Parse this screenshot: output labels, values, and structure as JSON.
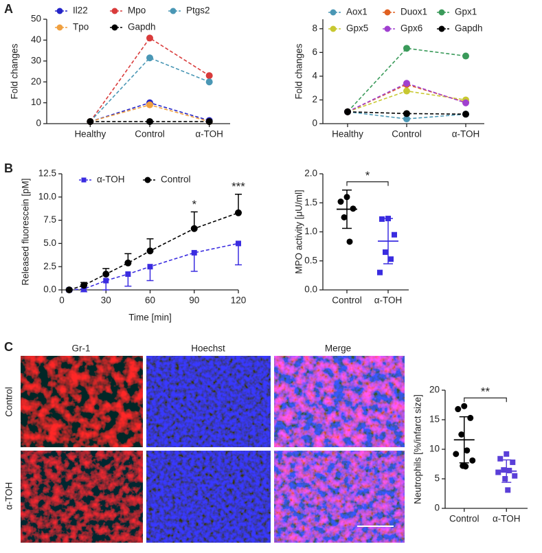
{
  "panels": [
    "A",
    "B",
    "C"
  ],
  "micrographs": {
    "columns": [
      "Gr-1",
      "Hoechst",
      "Merge"
    ],
    "rows": [
      "Control",
      "α-TOH"
    ]
  },
  "chart_data": [
    {
      "type": "line",
      "ylabel": "Fold changes",
      "categories": [
        "Healthy",
        "Control",
        "α-TOH"
      ],
      "ylim": [
        0,
        50
      ],
      "yticks": [
        0,
        10,
        20,
        30,
        40,
        50
      ],
      "line_style": "dashed",
      "series": [
        {
          "name": "Il22",
          "color": "#2424c8",
          "marker": "circle",
          "values": [
            1,
            10,
            1.5
          ]
        },
        {
          "name": "Mpo",
          "color": "#d93b3b",
          "marker": "circle",
          "values": [
            1,
            41,
            23
          ]
        },
        {
          "name": "Ptgs2",
          "color": "#4a97b5",
          "marker": "circle",
          "values": [
            1,
            31.5,
            20
          ]
        },
        {
          "name": "Tpo",
          "color": "#f0a040",
          "marker": "circle",
          "values": [
            1,
            9,
            1
          ]
        },
        {
          "name": "Gapdh",
          "color": "#000000",
          "marker": "circle",
          "values": [
            1,
            1,
            1
          ]
        }
      ]
    },
    {
      "type": "line",
      "ylabel": "Fold changes",
      "categories": [
        "Healthy",
        "Control",
        "α-TOH"
      ],
      "ylim": [
        0,
        8.8
      ],
      "yticks": [
        0,
        2,
        4,
        6,
        8
      ],
      "line_style": "dashed",
      "series": [
        {
          "name": "Aox1",
          "color": "#4a97b5",
          "marker": "circle",
          "values": [
            1,
            0.4,
            0.8
          ]
        },
        {
          "name": "Duox1",
          "color": "#e06020",
          "marker": "circle",
          "values": [
            1,
            3.3,
            1.8
          ]
        },
        {
          "name": "Gpx1",
          "color": "#3a9a5a",
          "marker": "circle",
          "values": [
            1,
            6.35,
            5.7
          ]
        },
        {
          "name": "Gpx5",
          "color": "#c8c830",
          "marker": "circle",
          "values": [
            1,
            2.75,
            2.0
          ]
        },
        {
          "name": "Gpx6",
          "color": "#a040d0",
          "marker": "circle",
          "values": [
            1,
            3.4,
            1.75
          ]
        },
        {
          "name": "Gapdh",
          "color": "#000000",
          "marker": "circle",
          "values": [
            1,
            0.85,
            0.8
          ]
        }
      ]
    },
    {
      "type": "line",
      "xlabel": "Time [min]",
      "ylabel": "Released fluorescein [pM]",
      "x": [
        5,
        15,
        30,
        45,
        60,
        90,
        120
      ],
      "xlim": [
        0,
        120
      ],
      "xticks": [
        0,
        30,
        60,
        90,
        120
      ],
      "ylim": [
        0,
        12.5
      ],
      "yticks": [
        {
          "value": 0,
          "label": "0.0"
        },
        {
          "value": 2.5,
          "label": "2.5"
        },
        {
          "value": 5,
          "label": "5.0"
        },
        {
          "value": 7.5,
          "label": "7.5"
        },
        {
          "value": 10,
          "label": "10.0"
        },
        {
          "value": 12.5,
          "label": "12.5"
        }
      ],
      "line_style": "dashed",
      "series": [
        {
          "name": "α-TOH",
          "color": "#3a2ce0",
          "marker": "square",
          "error_bar": "lower",
          "values": [
            0,
            0.1,
            1.0,
            1.7,
            2.5,
            4.0,
            5.0
          ],
          "errors": [
            0.1,
            0.3,
            1.0,
            1.3,
            1.5,
            2.0,
            2.3
          ]
        },
        {
          "name": "Control",
          "color": "#000000",
          "marker": "circle",
          "error_bar": "upper",
          "values": [
            0,
            0.5,
            1.7,
            2.9,
            4.2,
            6.6,
            8.3
          ],
          "errors": [
            0.1,
            0.3,
            0.6,
            1.0,
            1.3,
            1.8,
            2.0
          ]
        }
      ],
      "annotations": [
        {
          "x": 90,
          "text": "*"
        },
        {
          "x": 120,
          "text": "***"
        }
      ]
    },
    {
      "type": "dot",
      "ylabel": "MPO activity [μU/ml]",
      "categories": [
        "Control",
        "α-TOH"
      ],
      "ylim": [
        0,
        2
      ],
      "yticks": [
        {
          "value": 0,
          "label": "0.0"
        },
        {
          "value": 0.5,
          "label": "0.5"
        },
        {
          "value": 1,
          "label": "1.0"
        },
        {
          "value": 1.5,
          "label": "1.5"
        },
        {
          "value": 2,
          "label": "2.0"
        }
      ],
      "colors": [
        "#000000",
        "#3a2ce0"
      ],
      "markers": [
        "circle",
        "square"
      ],
      "points": [
        [
          1.6,
          1.52,
          1.4,
          1.25,
          0.83
        ],
        [
          1.23,
          1.22,
          0.95,
          0.65,
          0.53,
          0.3
        ]
      ],
      "means": [
        1.39,
        0.84
      ],
      "sds": [
        0.33,
        0.39
      ],
      "significance": "*"
    },
    {
      "type": "dot",
      "ylabel": "Neutrophils [%/infarct size]",
      "categories": [
        "Control",
        "α-TOH"
      ],
      "ylim": [
        0,
        20
      ],
      "yticks": [
        0,
        5,
        10,
        15,
        20
      ],
      "colors": [
        "#000000",
        "#5a3fd8"
      ],
      "markers": [
        "circle",
        "square"
      ],
      "points": [
        [
          17.3,
          16.8,
          15.3,
          12.5,
          9.8,
          9.2,
          8.1,
          7.2,
          7.1
        ],
        [
          9.2,
          8.4,
          7.8,
          6.5,
          6.4,
          6.1,
          5.5,
          5.0,
          3.1
        ]
      ],
      "means": [
        11.6,
        6.3
      ],
      "sds": [
        3.9,
        1.9
      ],
      "significance": "**"
    }
  ]
}
